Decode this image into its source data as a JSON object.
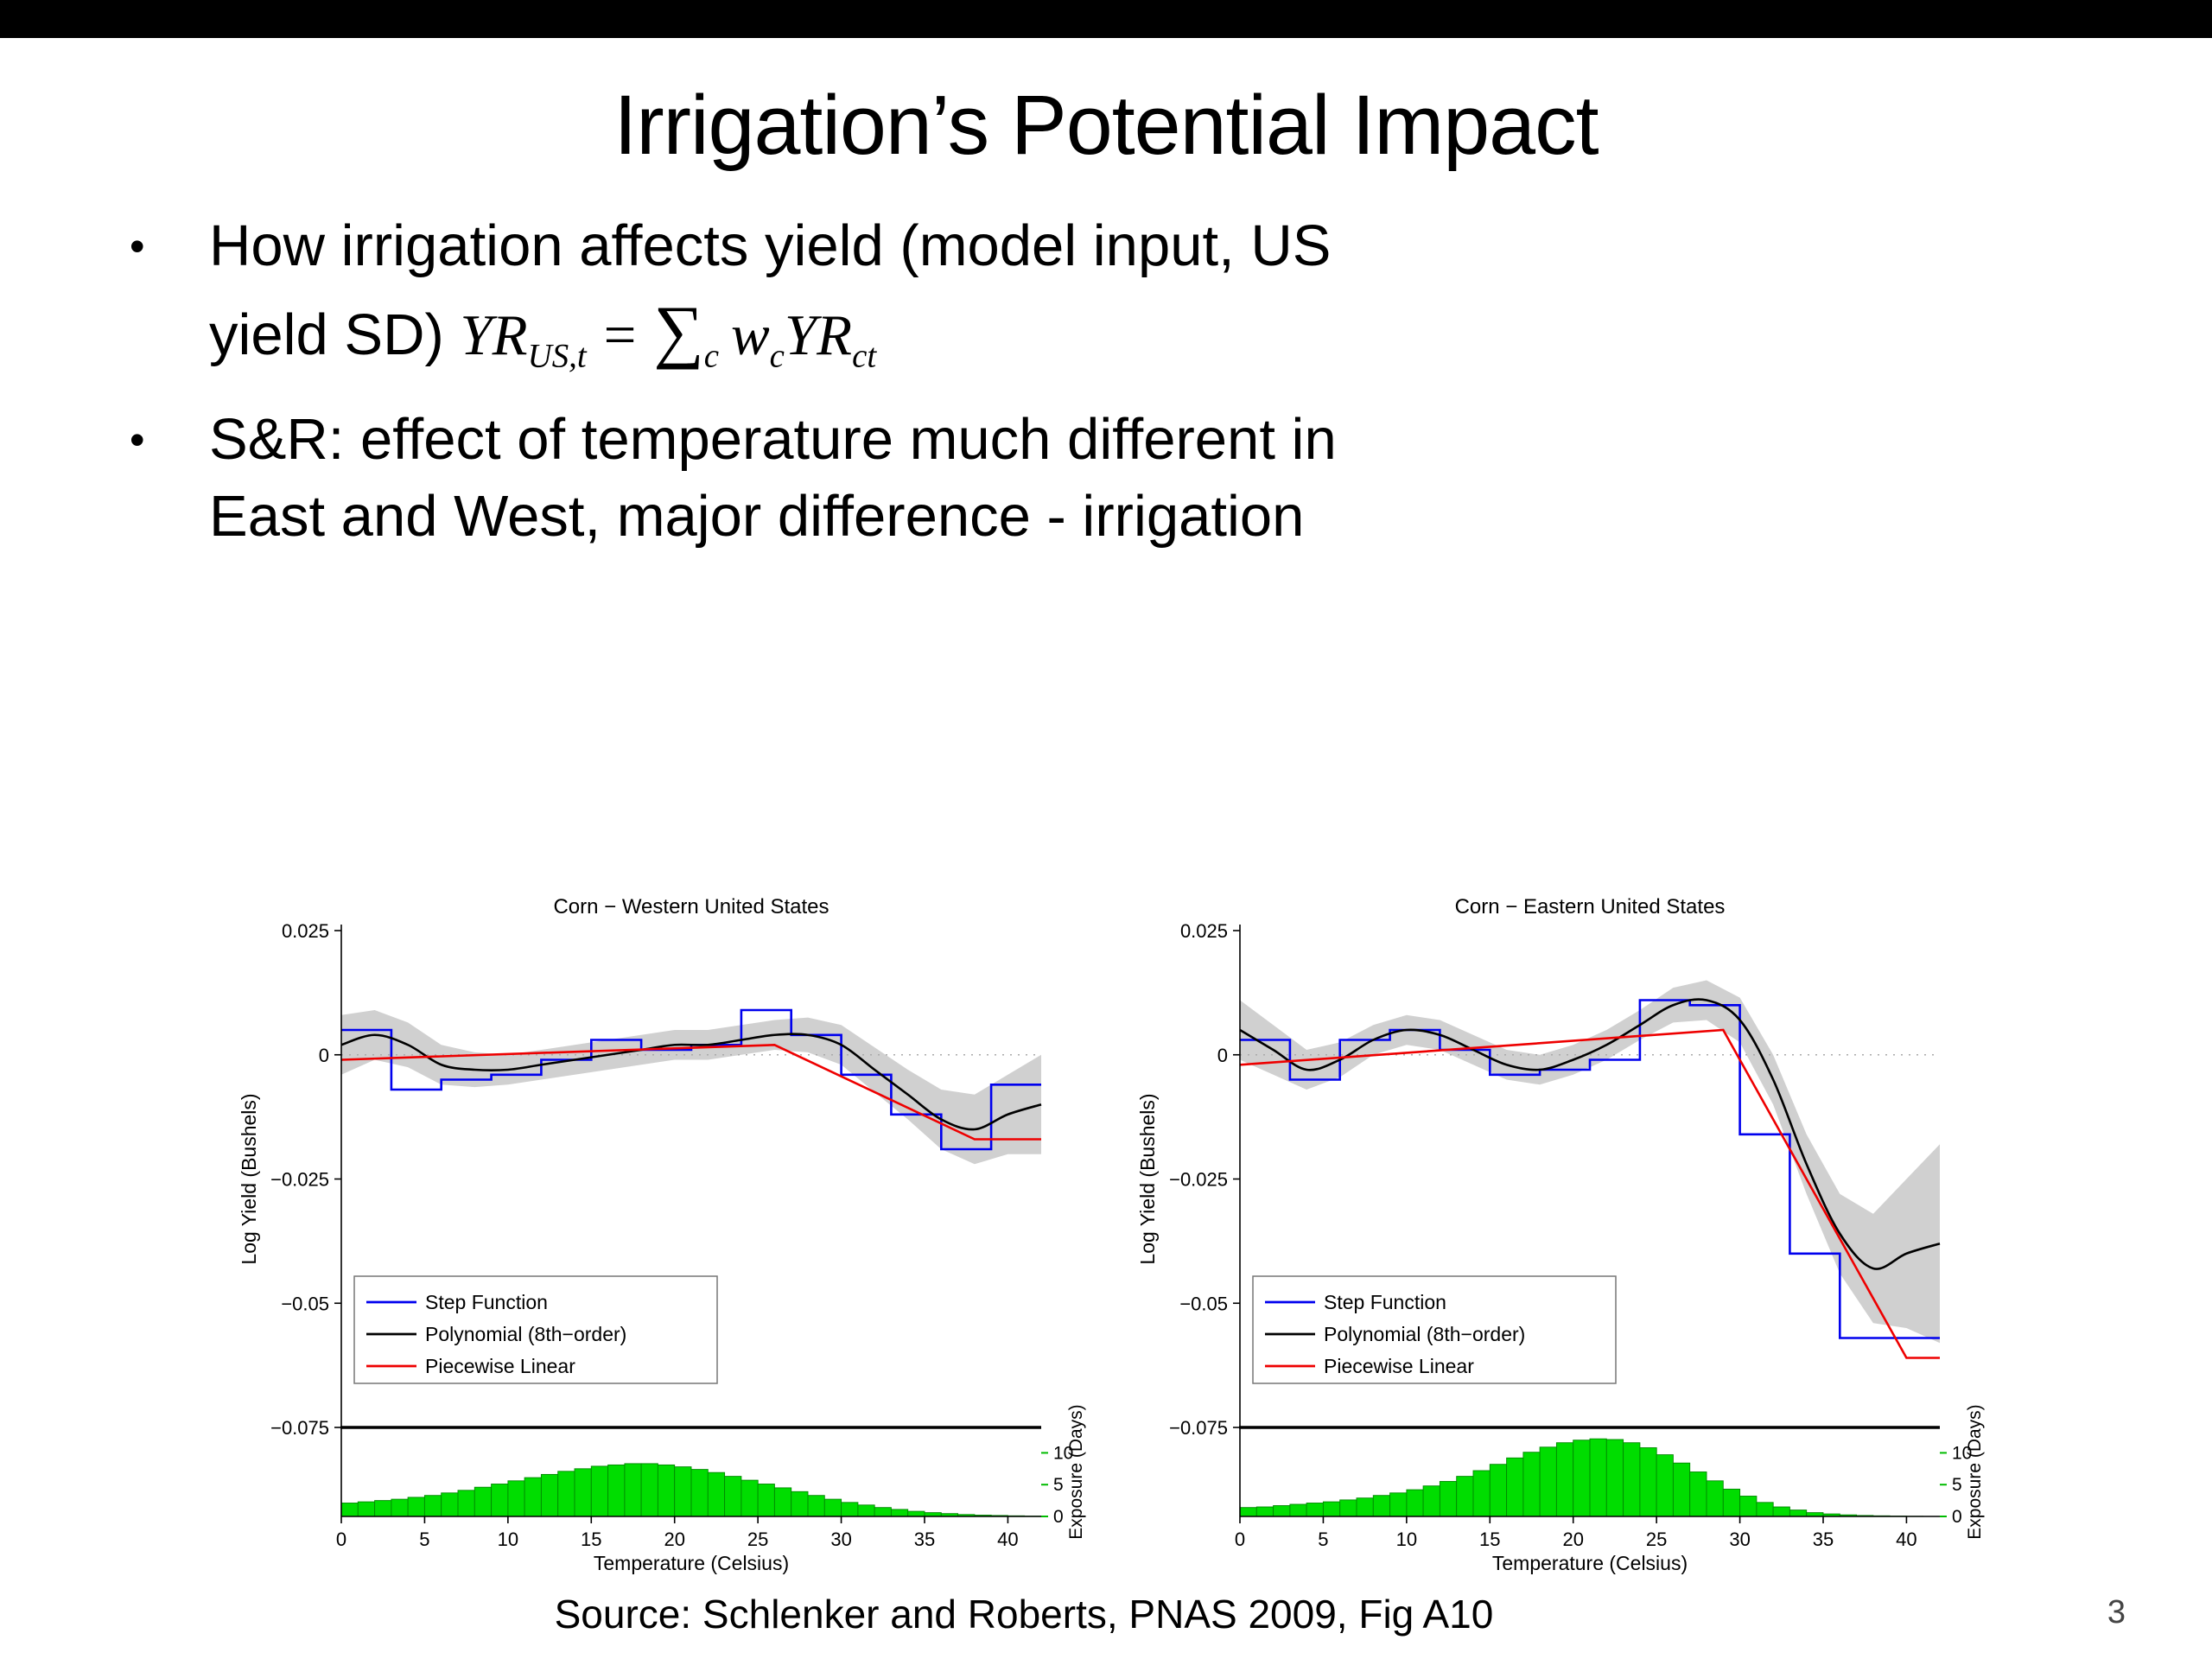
{
  "slide": {
    "title": "Irrigation’s Potential Impact",
    "bullet_char": "•",
    "bullets": [
      {
        "line1": "How irrigation affects yield (model input, US",
        "line2_prefix": "yield SD) ",
        "formula": {
          "yr1": "YR",
          "yr1_sub": "US,t",
          "equals": "=",
          "sigma": "∑",
          "sigma_sub": "c",
          "w": "w",
          "w_sub": "c",
          "yr2": "YR",
          "yr2_sub": "ct"
        }
      },
      {
        "line1": "S&R: effect of temperature much different in",
        "line2": "East and West, major difference - irrigation"
      }
    ],
    "source": "Source: Schlenker and Roberts, PNAS 2009, Fig A10",
    "page_number": "3"
  },
  "chart_data": [
    {
      "type": "line",
      "title": "Corn − Western United States",
      "xlabel": "Temperature (Celsius)",
      "ylabel": "Log Yield (Bushels)",
      "ylabel_right": "Exposure (Days)",
      "xlim": [
        0,
        42
      ],
      "ylim": [
        -0.075,
        0.025
      ],
      "xticks": [
        0,
        5,
        10,
        15,
        20,
        25,
        30,
        35,
        40
      ],
      "yticks": {
        "values": [
          0.025,
          0,
          -0.025,
          -0.05,
          -0.075
        ],
        "labels": [
          "0.025",
          "0",
          "−0.025",
          "−0.05",
          "−0.075"
        ]
      },
      "exposure_ticks": [
        0,
        5,
        10
      ],
      "exposure_max": 14,
      "legend": [
        "Step Function",
        "Polynomial (8th−order)",
        "Piecewise Linear"
      ],
      "colors": {
        "step": "#0000ee",
        "polynomial": "#000000",
        "piecewise": "#ee0000",
        "band": "#c4c4c4",
        "histogram": "#00dd00",
        "exposure_axis": "#00bb00"
      },
      "step_bin_width": 3,
      "step_values": [
        0.005,
        -0.007,
        -0.005,
        -0.004,
        -0.001,
        0.003,
        0.001,
        0.002,
        0.009,
        0.004,
        -0.004,
        -0.012,
        -0.019,
        -0.006
      ],
      "poly_x": [
        0,
        2,
        4,
        6,
        8,
        10,
        12,
        14,
        16,
        18,
        20,
        22,
        24,
        26,
        28,
        30,
        32,
        34,
        36,
        38,
        40,
        42
      ],
      "poly_y": [
        0.002,
        0.004,
        0.002,
        -0.002,
        -0.003,
        -0.003,
        -0.002,
        -0.001,
        0.0,
        0.001,
        0.002,
        0.002,
        0.003,
        0.004,
        0.004,
        0.002,
        -0.003,
        -0.008,
        -0.013,
        -0.015,
        -0.012,
        -0.01
      ],
      "band_halfwidth": [
        0.006,
        0.005,
        0.0045,
        0.004,
        0.0035,
        0.003,
        0.003,
        0.003,
        0.003,
        0.003,
        0.003,
        0.003,
        0.003,
        0.003,
        0.0035,
        0.004,
        0.0045,
        0.005,
        0.006,
        0.007,
        0.008,
        0.01
      ],
      "piecewise_points": [
        [
          0,
          -0.001
        ],
        [
          26,
          0.002
        ],
        [
          38,
          -0.017
        ],
        [
          42,
          -0.017
        ]
      ],
      "histogram_bin_width": 1,
      "histogram_values": [
        2.1,
        2.3,
        2.5,
        2.7,
        3.0,
        3.3,
        3.7,
        4.1,
        4.6,
        5.1,
        5.6,
        6.1,
        6.6,
        7.1,
        7.5,
        7.9,
        8.1,
        8.3,
        8.3,
        8.1,
        7.8,
        7.4,
        6.9,
        6.3,
        5.7,
        5.1,
        4.5,
        3.9,
        3.3,
        2.7,
        2.2,
        1.8,
        1.4,
        1.1,
        0.8,
        0.6,
        0.45,
        0.3,
        0.2,
        0.15,
        0.1,
        0.05
      ]
    },
    {
      "type": "line",
      "title": "Corn − Eastern United States",
      "xlabel": "Temperature (Celsius)",
      "ylabel": "Log Yield (Bushels)",
      "ylabel_right": "Exposure (Days)",
      "xlim": [
        0,
        42
      ],
      "ylim": [
        -0.075,
        0.025
      ],
      "xticks": [
        0,
        5,
        10,
        15,
        20,
        25,
        30,
        35,
        40
      ],
      "yticks": {
        "values": [
          0.025,
          0,
          -0.025,
          -0.05,
          -0.075
        ],
        "labels": [
          "0.025",
          "0",
          "−0.025",
          "−0.05",
          "−0.075"
        ]
      },
      "exposure_ticks": [
        0,
        5,
        10
      ],
      "exposure_max": 14,
      "legend": [
        "Step Function",
        "Polynomial (8th−order)",
        "Piecewise Linear"
      ],
      "colors": {
        "step": "#0000ee",
        "polynomial": "#000000",
        "piecewise": "#ee0000",
        "band": "#c4c4c4",
        "histogram": "#00dd00",
        "exposure_axis": "#00bb00"
      },
      "step_bin_width": 3,
      "step_values": [
        0.003,
        -0.005,
        0.003,
        0.005,
        0.001,
        -0.004,
        -0.003,
        -0.001,
        0.011,
        0.01,
        -0.016,
        -0.04,
        -0.057,
        -0.057
      ],
      "poly_x": [
        0,
        2,
        4,
        6,
        8,
        10,
        12,
        14,
        16,
        18,
        20,
        22,
        24,
        26,
        28,
        30,
        32,
        34,
        36,
        38,
        40,
        42
      ],
      "poly_y": [
        0.005,
        0.001,
        -0.003,
        -0.001,
        0.003,
        0.005,
        0.004,
        0.001,
        -0.002,
        -0.003,
        -0.001,
        0.002,
        0.006,
        0.01,
        0.011,
        0.007,
        -0.005,
        -0.022,
        -0.036,
        -0.043,
        -0.04,
        -0.038
      ],
      "band_halfwidth": [
        0.006,
        0.005,
        0.004,
        0.0035,
        0.003,
        0.003,
        0.003,
        0.003,
        0.003,
        0.003,
        0.003,
        0.003,
        0.003,
        0.0035,
        0.004,
        0.0045,
        0.005,
        0.006,
        0.008,
        0.011,
        0.015,
        0.02
      ],
      "piecewise_points": [
        [
          0,
          -0.002
        ],
        [
          29,
          0.005
        ],
        [
          40,
          -0.061
        ],
        [
          42,
          -0.061
        ]
      ],
      "histogram_bin_width": 1,
      "histogram_values": [
        1.4,
        1.5,
        1.7,
        1.9,
        2.1,
        2.3,
        2.6,
        2.9,
        3.3,
        3.7,
        4.2,
        4.8,
        5.5,
        6.3,
        7.2,
        8.2,
        9.2,
        10.1,
        10.9,
        11.6,
        12.0,
        12.2,
        12.1,
        11.6,
        10.8,
        9.7,
        8.4,
        7.0,
        5.6,
        4.3,
        3.2,
        2.2,
        1.5,
        1.0,
        0.6,
        0.4,
        0.25,
        0.15,
        0.1,
        0.05,
        0.03,
        0.02
      ]
    }
  ]
}
